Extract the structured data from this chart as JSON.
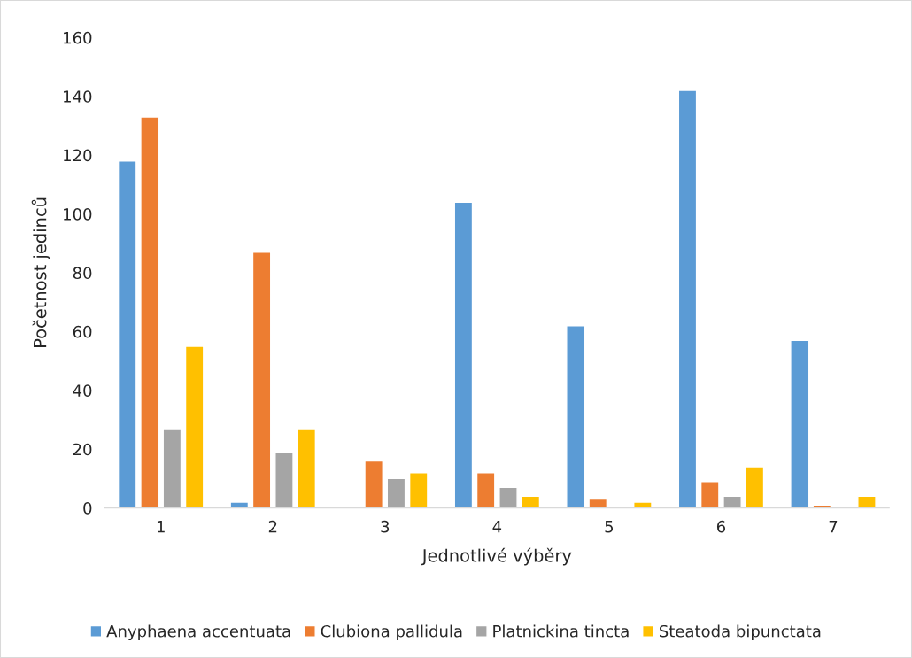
{
  "chart_data": {
    "type": "bar",
    "xlabel": "Jednotlivé výběry",
    "ylabel": "Početnost jedinců",
    "categories": [
      "1",
      "2",
      "3",
      "4",
      "5",
      "6",
      "7"
    ],
    "series": [
      {
        "name": "Anyphaena accentuata",
        "color": "#5b9bd5",
        "values": [
          118,
          2,
          null,
          104,
          62,
          142,
          57
        ]
      },
      {
        "name": "Clubiona pallidula",
        "color": "#ed7d31",
        "values": [
          133,
          87,
          16,
          12,
          3,
          9,
          1
        ]
      },
      {
        "name": "Platnickina tincta",
        "color": "#a5a5a5",
        "values": [
          27,
          19,
          10,
          7,
          null,
          4,
          null
        ]
      },
      {
        "name": "Steatoda bipunctata",
        "color": "#ffc000",
        "values": [
          55,
          27,
          12,
          4,
          2,
          14,
          4
        ]
      }
    ],
    "ylim": [
      0,
      160
    ],
    "yticks": [
      0,
      20,
      40,
      60,
      80,
      100,
      120,
      140,
      160
    ],
    "grid": false,
    "legend": "bottom"
  }
}
